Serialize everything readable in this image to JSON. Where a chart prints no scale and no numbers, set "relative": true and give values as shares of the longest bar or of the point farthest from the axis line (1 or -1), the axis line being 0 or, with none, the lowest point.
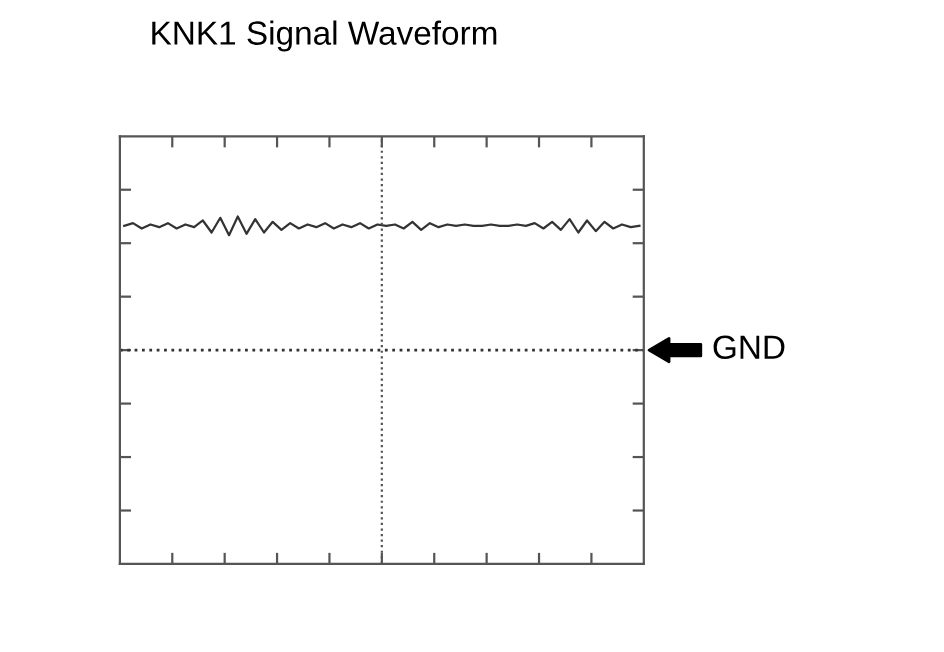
{
  "chart_data": {
    "type": "line",
    "title": "KNK1 Signal Waveform",
    "relative": true,
    "color": "#333333",
    "categories": [
      null,
      null,
      null,
      null,
      null,
      null,
      null,
      null,
      null,
      null,
      null,
      null,
      null,
      null,
      null,
      null,
      null,
      null,
      null,
      null,
      null,
      null,
      null,
      null,
      null,
      null,
      null,
      null,
      null,
      null,
      null,
      null,
      null,
      null,
      null,
      null,
      null,
      null,
      null,
      null,
      null,
      null,
      null,
      null,
      null,
      null,
      null,
      null,
      null,
      null,
      null,
      null,
      null,
      null,
      null,
      null,
      null,
      null,
      null,
      null
    ],
    "values": [
      0.93,
      0.95,
      0.91,
      0.94,
      0.92,
      0.95,
      0.91,
      0.94,
      0.92,
      0.97,
      0.88,
      0.99,
      0.86,
      1.0,
      0.87,
      0.98,
      0.88,
      0.96,
      0.9,
      0.95,
      0.91,
      0.94,
      0.92,
      0.95,
      0.91,
      0.94,
      0.92,
      0.95,
      0.91,
      0.94,
      0.93,
      0.94,
      0.91,
      0.96,
      0.9,
      0.95,
      0.92,
      0.94,
      0.93,
      0.94,
      0.93,
      0.93,
      0.94,
      0.93,
      0.93,
      0.94,
      0.93,
      0.95,
      0.91,
      0.96,
      0.9,
      0.98,
      0.88,
      0.97,
      0.89,
      0.96,
      0.91,
      0.94,
      0.92,
      0.93
    ],
    "ref_lines": [
      {
        "axis": "y",
        "value": 0,
        "label": "GND",
        "line_style": "dotted"
      }
    ]
  }
}
